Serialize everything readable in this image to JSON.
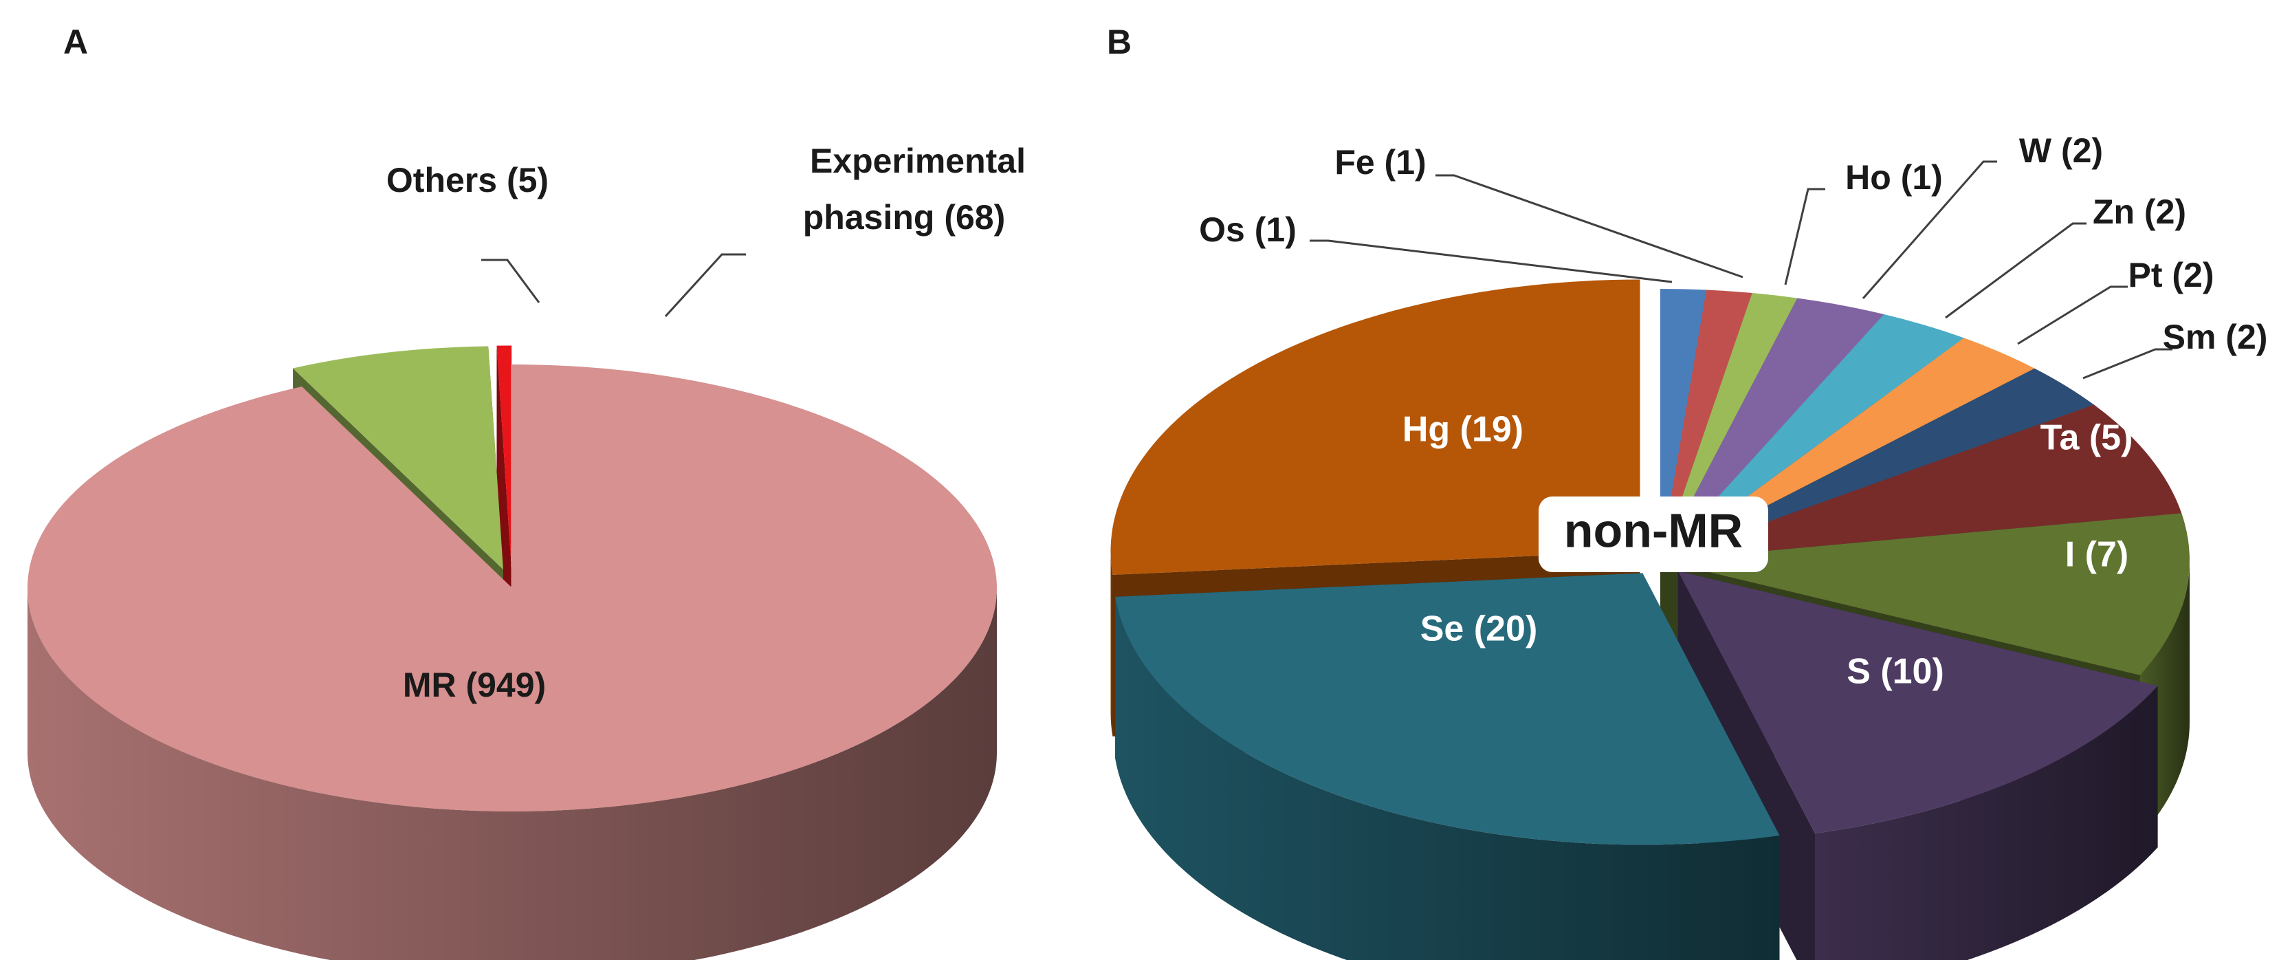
{
  "panel_a": {
    "letter": "A"
  },
  "panel_b": {
    "letter": "B",
    "center_label": "non-MR"
  },
  "chart_data": [
    {
      "type": "pie",
      "title": "A",
      "three_d": true,
      "labels": [
        "MR",
        "Experimental phasing",
        "Others"
      ],
      "values": [
        949,
        68,
        5
      ],
      "display_labels": [
        "MR (949)",
        "Experimental phasing (68)",
        "Others (5)"
      ],
      "colors": [
        "#d69190",
        "#9bbb59",
        "#e8151b"
      ]
    },
    {
      "type": "pie",
      "title": "B",
      "three_d": true,
      "labels": [
        "Os",
        "Fe",
        "Ho",
        "W",
        "Zn",
        "Pt",
        "Sm",
        "Ta",
        "I",
        "S",
        "Se",
        "Hg"
      ],
      "values": [
        1,
        1,
        1,
        2,
        2,
        2,
        2,
        5,
        7,
        10,
        20,
        19
      ],
      "display_labels": [
        "Os (1)",
        "Fe (1)",
        "Ho (1)",
        "W (2)",
        "Zn (2)",
        "Pt (2)",
        "Sm (2)",
        "Ta (5)",
        "I (7)",
        "S (10)",
        "Se (20)",
        "Hg (19)"
      ],
      "colors": [
        "#4a7ebb",
        "#c0504d",
        "#9bbb59",
        "#8064a2",
        "#4bacc6",
        "#f79646",
        "#2c4d75",
        "#772c2a",
        "#5f7530",
        "#4d3b62",
        "#276a7c",
        "#b65708"
      ]
    }
  ]
}
